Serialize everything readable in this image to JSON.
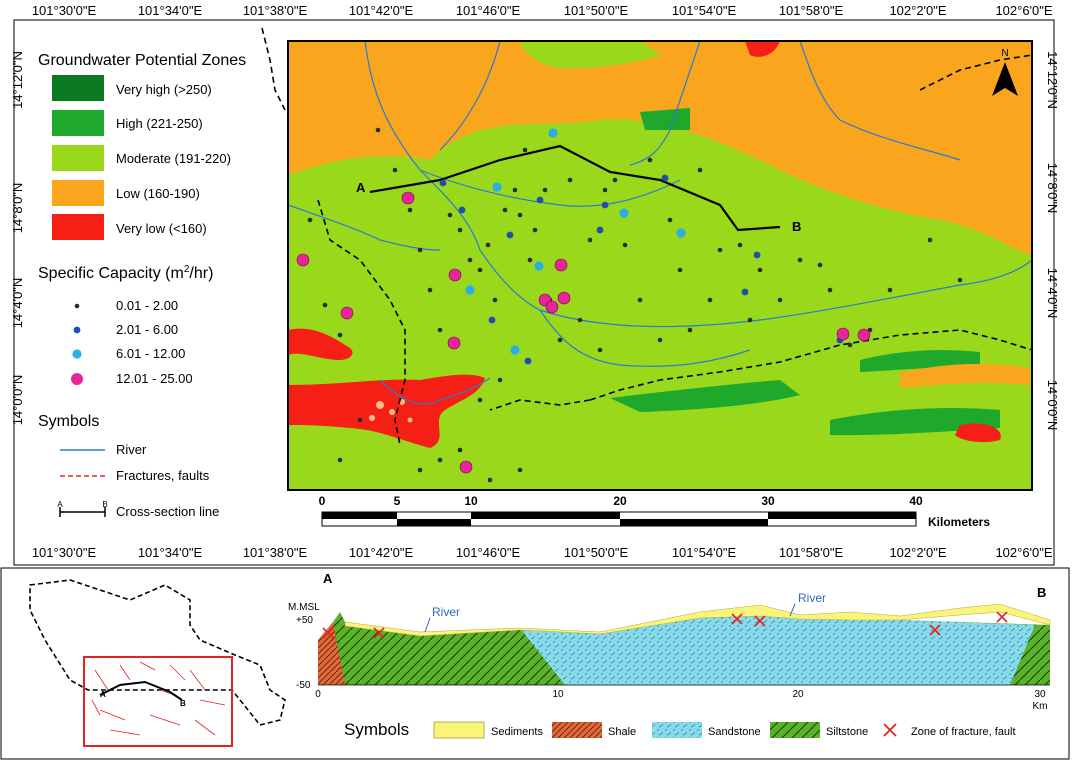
{
  "map": {
    "lon_labels": [
      "101°30'0\"E",
      "101°34'0\"E",
      "101°38'0\"E",
      "101°42'0\"E",
      "101°46'0\"E",
      "101°50'0\"E",
      "101°54'0\"E",
      "101°58'0\"E",
      "102°2'0\"E",
      "102°6'0\"E"
    ],
    "lat_labels_left": [
      "14°12'0\"N",
      "14°8'0\"N",
      "14°4'0\"N",
      "14°0'0\"N"
    ],
    "lat_labels_right": [
      "14°12'0\"N",
      "14°8'0\"N",
      "14°4'0\"N",
      "14°0'0\"N"
    ],
    "north_label": "N",
    "section_start": "A",
    "section_end": "B",
    "scale_ticks": [
      "0",
      "5",
      "10",
      "20",
      "30",
      "40"
    ],
    "scale_unit": "Kilometers"
  },
  "legend": {
    "zones_title": "Groundwater Potential Zones",
    "zones": [
      {
        "label": "Very high (>250)",
        "color": "#0c7a21"
      },
      {
        "label": "High (221-250)",
        "color": "#1ea82c"
      },
      {
        "label": "Moderate (191-220)",
        "color": "#9ad81b"
      },
      {
        "label": "Low (160-190)",
        "color": "#f9a61e"
      },
      {
        "label": "Very low (<160)",
        "color": "#f51f16"
      }
    ],
    "capacity_title_main": "Specific Capacity (m",
    "capacity_title_sup": "2",
    "capacity_title_end": "/hr)",
    "capacity": [
      {
        "label": "0.01 - 2.00",
        "color": "#2b2b2b"
      },
      {
        "label": "2.01 - 6.00",
        "color": "#1f4fa8"
      },
      {
        "label": "6.01 - 12.00",
        "color": "#2aaee8"
      },
      {
        "label": "12.01 - 25.00",
        "color": "#e8249a"
      }
    ],
    "symbols_title": "Symbols",
    "symbols": [
      {
        "label": "River",
        "icon": "blue-line-icon"
      },
      {
        "label": "Fractures, faults",
        "icon": "red-dashed-line-icon"
      },
      {
        "label": "Cross-section line",
        "icon": "cross-section-icon",
        "a": "A",
        "b": "B"
      }
    ]
  },
  "section": {
    "label_a": "A",
    "label_b": "B",
    "mmsl": "M.MSL",
    "plus50": "+50",
    "minus50": "-50",
    "river1": "River",
    "river2": "River",
    "x_ticks": [
      "0",
      "10",
      "20",
      "30"
    ],
    "x_unit": "Km",
    "inset_a": "A",
    "inset_b": "B"
  },
  "section_legend": {
    "title": "Symbols",
    "items": [
      {
        "label": "Sediments",
        "color": "#fbf47a"
      },
      {
        "label": "Shale",
        "color": "#e0683a"
      },
      {
        "label": "Sandstone",
        "color": "#86dcec"
      },
      {
        "label": "Siltstone",
        "color": "#58b22a"
      },
      {
        "label": "Zone of fracture, fault",
        "color": "#e52323"
      }
    ]
  }
}
